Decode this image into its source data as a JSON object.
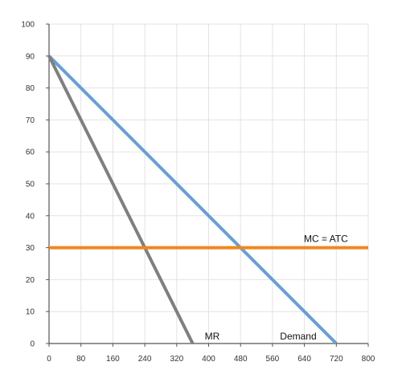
{
  "chart_data": {
    "type": "line",
    "title": "",
    "xlabel": "",
    "ylabel": "",
    "xlim": [
      0,
      800
    ],
    "ylim": [
      0,
      100
    ],
    "x_ticks": [
      0,
      80,
      160,
      240,
      320,
      400,
      480,
      560,
      640,
      720,
      800
    ],
    "y_ticks": [
      0,
      10,
      20,
      30,
      40,
      50,
      60,
      70,
      80,
      90,
      100
    ],
    "grid": true,
    "legend": "none",
    "series": [
      {
        "name": "Demand",
        "color": "#6a9ed4",
        "points": [
          [
            0,
            90
          ],
          [
            720,
            0
          ]
        ]
      },
      {
        "name": "MR",
        "color": "#7f7f7f",
        "points": [
          [
            0,
            90
          ],
          [
            360,
            0
          ]
        ]
      },
      {
        "name": "MC = ATC",
        "color": "#f0871e",
        "points": [
          [
            0,
            30
          ],
          [
            800,
            30
          ]
        ]
      }
    ]
  }
}
